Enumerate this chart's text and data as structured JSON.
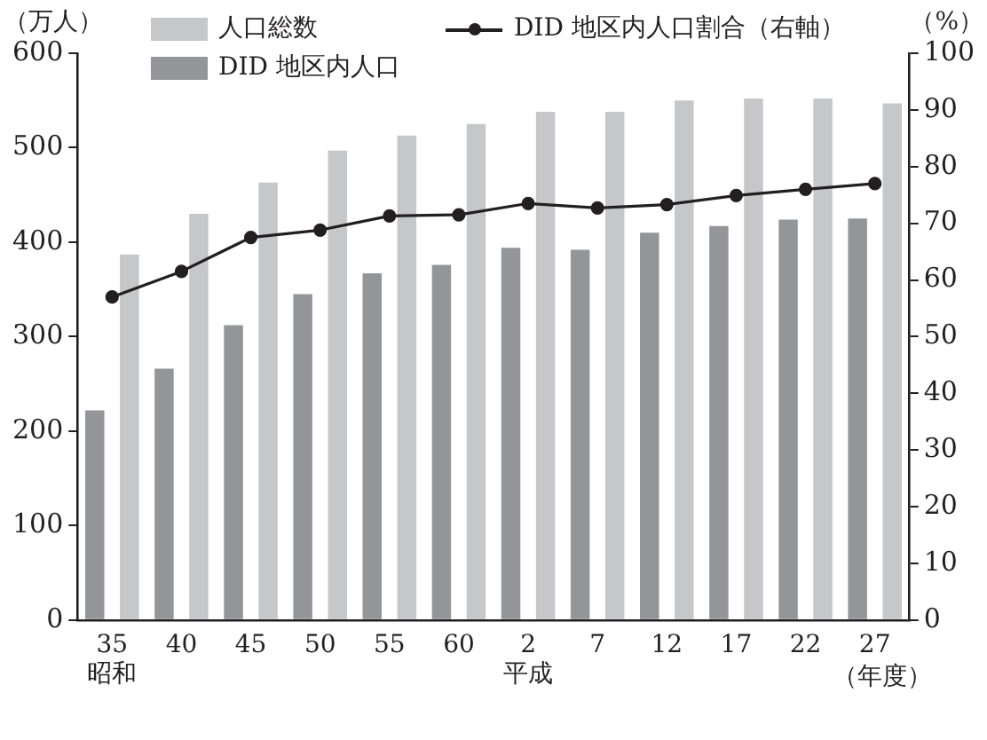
{
  "chart_data": {
    "type": "bar",
    "categories": [
      "35\n昭和",
      "40",
      "45",
      "50",
      "55",
      "60",
      "2\n平成",
      "7",
      "12",
      "17",
      "22",
      "27"
    ],
    "xlabel": "（年度）",
    "ylabel": "（万人）",
    "y2label": "（%）",
    "series": [
      {
        "name": "DID 地区内人口",
        "color": "#939598",
        "values": [
          222,
          266,
          312,
          345,
          367,
          376,
          394,
          392,
          410,
          417,
          424,
          425
        ]
      },
      {
        "name": "人口総数",
        "color": "#c6c7c9",
        "values": [
          387,
          430,
          463,
          497,
          513,
          525,
          538,
          538,
          550,
          552,
          552,
          547
        ]
      },
      {
        "name": "DID 地区内人口割合（右軸）",
        "type": "line",
        "axis": "y2",
        "color": "#231f20",
        "marker": "circle",
        "values": [
          57,
          61.5,
          67.5,
          68.8,
          71.3,
          71.5,
          73.5,
          72.7,
          73.3,
          74.9,
          76.0,
          77.0
        ]
      }
    ],
    "ylim": [
      0,
      600
    ],
    "yticks": [
      0,
      100,
      200,
      300,
      400,
      500,
      600
    ],
    "y2lim": [
      0,
      100
    ],
    "y2ticks": [
      0,
      10,
      20,
      30,
      40,
      50,
      60,
      70,
      80,
      90,
      100
    ],
    "grid": false,
    "legend": "top"
  }
}
